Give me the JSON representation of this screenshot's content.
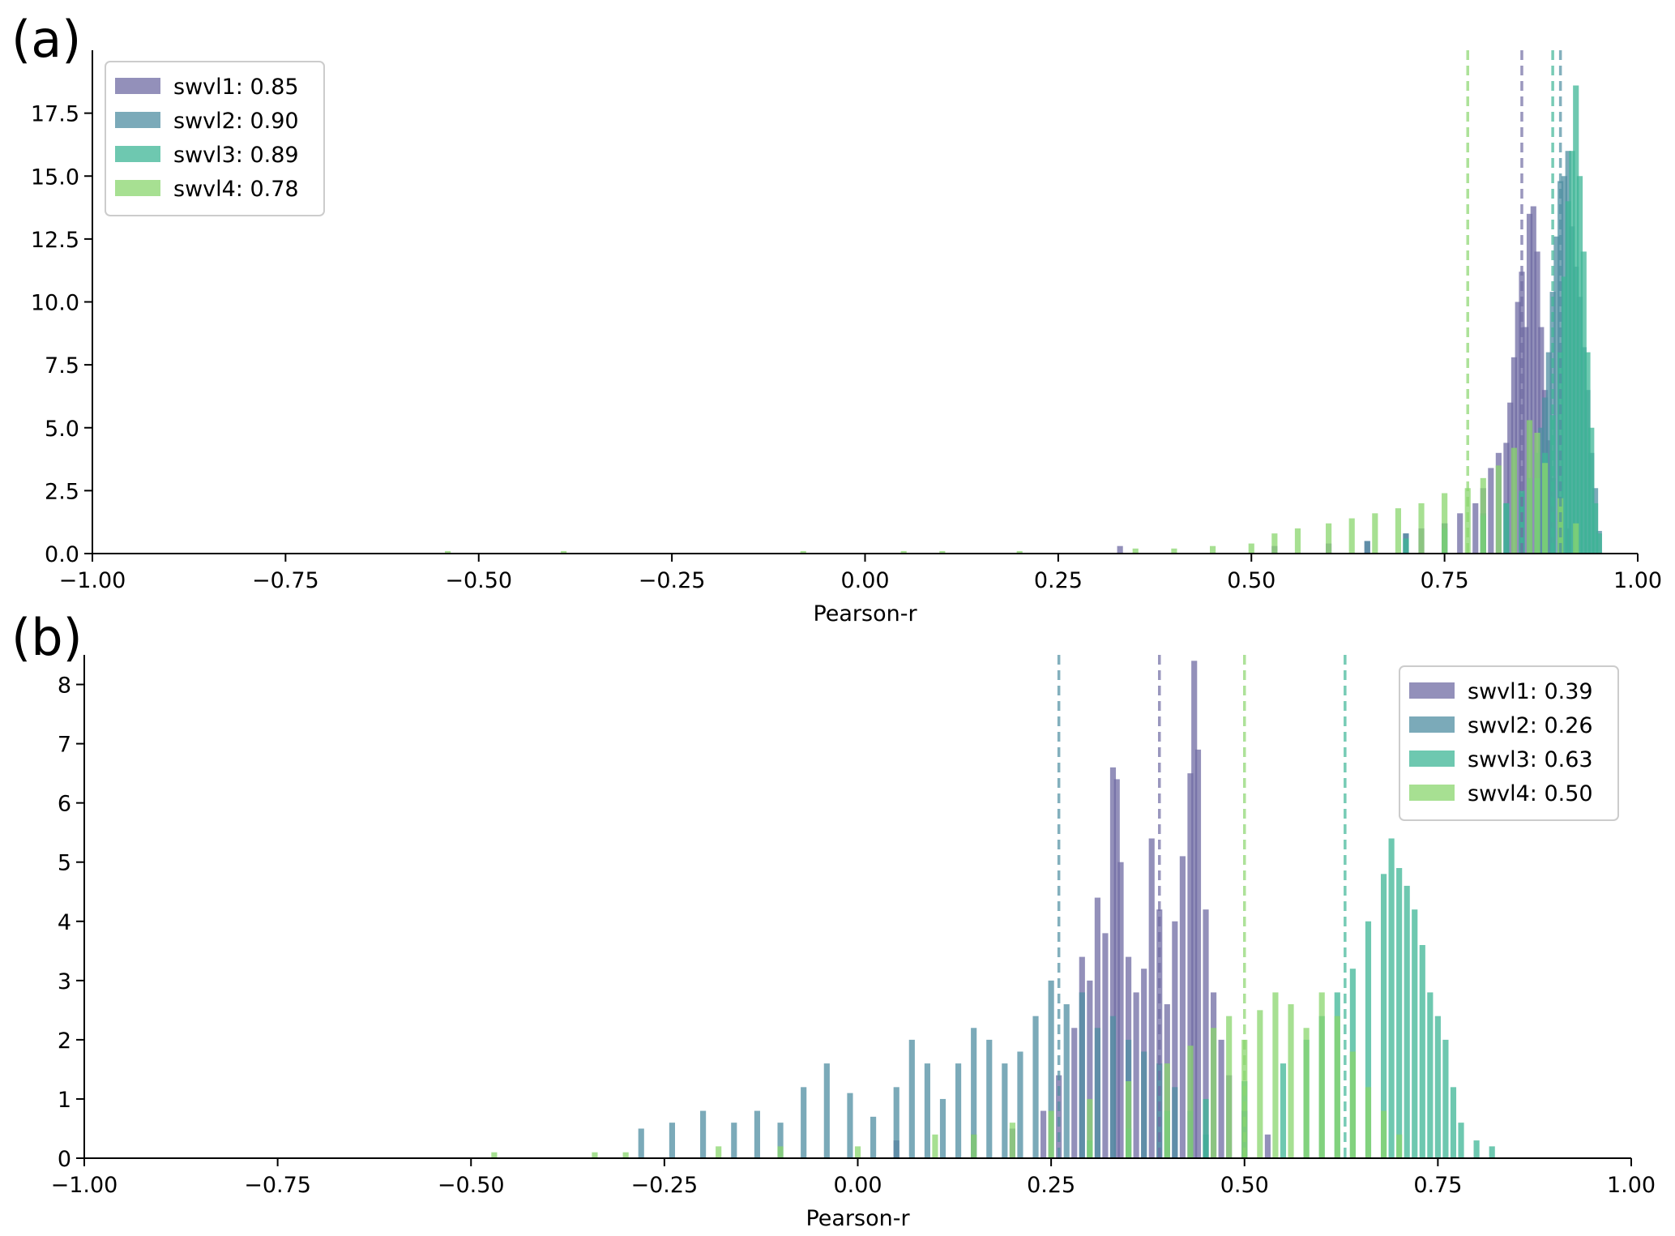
{
  "chart_data": [
    {
      "panel_label": "(a)",
      "type": "histogram",
      "xlabel": "Pearson-r",
      "ylabel": "",
      "xlim": [
        -1.0,
        1.0
      ],
      "ylim": [
        0,
        20
      ],
      "xticks": [
        "−1.00",
        "−0.75",
        "−0.50",
        "−0.25",
        "0.00",
        "0.25",
        "0.50",
        "0.75",
        "1.00"
      ],
      "yticks": [
        "0.0",
        "2.5",
        "5.0",
        "7.5",
        "10.0",
        "12.5",
        "15.0",
        "17.5"
      ],
      "legend_position": "top-left",
      "series": [
        {
          "name": "swvl1: 0.85",
          "color": "#6f6ba3",
          "mean": 0.85,
          "bins": [
            [
              0.33,
              0.3
            ],
            [
              0.53,
              0.3
            ],
            [
              0.6,
              0.4
            ],
            [
              0.65,
              0.5
            ],
            [
              0.7,
              0.8
            ],
            [
              0.72,
              1.0
            ],
            [
              0.75,
              1.2
            ],
            [
              0.77,
              1.6
            ],
            [
              0.79,
              2.0
            ],
            [
              0.8,
              2.6
            ],
            [
              0.81,
              3.4
            ],
            [
              0.82,
              4.0
            ],
            [
              0.83,
              4.4
            ],
            [
              0.835,
              6.0
            ],
            [
              0.84,
              7.8
            ],
            [
              0.845,
              10.0
            ],
            [
              0.85,
              11.2
            ],
            [
              0.855,
              9.0
            ],
            [
              0.86,
              13.5
            ],
            [
              0.865,
              13.8
            ],
            [
              0.87,
              12.0
            ],
            [
              0.875,
              9.0
            ],
            [
              0.88,
              6.5
            ],
            [
              0.885,
              4.5
            ],
            [
              0.89,
              3.0
            ],
            [
              0.9,
              2.0
            ],
            [
              0.91,
              1.0
            ]
          ]
        },
        {
          "name": "swvl2: 0.90",
          "color": "#4f8ea1",
          "mean": 0.9,
          "bins": [
            [
              0.65,
              0.5
            ],
            [
              0.7,
              0.8
            ],
            [
              0.75,
              1.2
            ],
            [
              0.8,
              1.6
            ],
            [
              0.83,
              2.0
            ],
            [
              0.85,
              2.4
            ],
            [
              0.86,
              3.0
            ],
            [
              0.87,
              4.0
            ],
            [
              0.875,
              5.0
            ],
            [
              0.88,
              6.2
            ],
            [
              0.885,
              8.0
            ],
            [
              0.89,
              10.4
            ],
            [
              0.895,
              12.6
            ],
            [
              0.9,
              14.8
            ],
            [
              0.905,
              15.0
            ],
            [
              0.91,
              16.0
            ],
            [
              0.915,
              13.0
            ],
            [
              0.92,
              11.4
            ],
            [
              0.925,
              10.2
            ],
            [
              0.93,
              8.2
            ],
            [
              0.935,
              6.5
            ],
            [
              0.94,
              4.0
            ],
            [
              0.945,
              2.6
            ],
            [
              0.95,
              0.9
            ]
          ]
        },
        {
          "name": "swvl3: 0.89",
          "color": "#3db596",
          "mean": 0.89,
          "bins": [
            [
              0.7,
              0.6
            ],
            [
              0.75,
              1.0
            ],
            [
              0.8,
              1.5
            ],
            [
              0.83,
              2.0
            ],
            [
              0.85,
              2.5
            ],
            [
              0.87,
              3.0
            ],
            [
              0.88,
              4.0
            ],
            [
              0.89,
              5.5
            ],
            [
              0.9,
              8.0
            ],
            [
              0.905,
              11.0
            ],
            [
              0.91,
              14.0
            ],
            [
              0.915,
              16.0
            ],
            [
              0.92,
              18.6
            ],
            [
              0.925,
              15.0
            ],
            [
              0.93,
              12.0
            ],
            [
              0.935,
              8.0
            ],
            [
              0.94,
              5.0
            ],
            [
              0.945,
              2.0
            ],
            [
              0.95,
              0.8
            ]
          ]
        },
        {
          "name": "swvl4: 0.78",
          "color": "#8ad66e",
          "mean": 0.78,
          "bins": [
            [
              -0.54,
              0.1
            ],
            [
              -0.39,
              0.1
            ],
            [
              -0.08,
              0.1
            ],
            [
              0.05,
              0.1
            ],
            [
              0.1,
              0.1
            ],
            [
              0.2,
              0.1
            ],
            [
              0.35,
              0.2
            ],
            [
              0.4,
              0.2
            ],
            [
              0.45,
              0.3
            ],
            [
              0.5,
              0.4
            ],
            [
              0.53,
              0.8
            ],
            [
              0.56,
              1.0
            ],
            [
              0.6,
              1.2
            ],
            [
              0.63,
              1.4
            ],
            [
              0.66,
              1.6
            ],
            [
              0.69,
              1.8
            ],
            [
              0.72,
              2.0
            ],
            [
              0.75,
              2.4
            ],
            [
              0.78,
              2.6
            ],
            [
              0.8,
              3.0
            ],
            [
              0.82,
              3.5
            ],
            [
              0.84,
              4.2
            ],
            [
              0.86,
              5.3
            ],
            [
              0.87,
              4.8
            ],
            [
              0.88,
              3.6
            ],
            [
              0.9,
              2.2
            ],
            [
              0.92,
              1.2
            ]
          ]
        }
      ]
    },
    {
      "panel_label": "(b)",
      "type": "histogram",
      "xlabel": "Pearson-r",
      "ylabel": "",
      "xlim": [
        -1.0,
        1.0
      ],
      "ylim": [
        0,
        8.5
      ],
      "xticks": [
        "−1.00",
        "−0.75",
        "−0.50",
        "−0.25",
        "0.00",
        "0.25",
        "0.50",
        "0.75",
        "1.00"
      ],
      "yticks": [
        "0",
        "1",
        "2",
        "3",
        "4",
        "5",
        "6",
        "7",
        "8"
      ],
      "legend_position": "top-right",
      "series": [
        {
          "name": "swvl1: 0.39",
          "color": "#6f6ba3",
          "mean": 0.39,
          "bins": [
            [
              0.05,
              0.3
            ],
            [
              0.15,
              0.4
            ],
            [
              0.2,
              0.5
            ],
            [
              0.24,
              0.8
            ],
            [
              0.26,
              1.4
            ],
            [
              0.28,
              2.2
            ],
            [
              0.29,
              3.4
            ],
            [
              0.3,
              3.0
            ],
            [
              0.31,
              4.4
            ],
            [
              0.32,
              3.8
            ],
            [
              0.33,
              6.6
            ],
            [
              0.335,
              6.4
            ],
            [
              0.34,
              5.0
            ],
            [
              0.35,
              3.4
            ],
            [
              0.36,
              2.8
            ],
            [
              0.37,
              3.2
            ],
            [
              0.38,
              5.4
            ],
            [
              0.39,
              4.2
            ],
            [
              0.4,
              2.6
            ],
            [
              0.41,
              4.0
            ],
            [
              0.42,
              5.1
            ],
            [
              0.43,
              6.5
            ],
            [
              0.435,
              8.4
            ],
            [
              0.44,
              6.9
            ],
            [
              0.45,
              4.2
            ],
            [
              0.46,
              2.8
            ],
            [
              0.47,
              2.0
            ],
            [
              0.48,
              1.4
            ],
            [
              0.5,
              0.8
            ],
            [
              0.53,
              0.4
            ]
          ]
        },
        {
          "name": "swvl2: 0.26",
          "color": "#4f8ea1",
          "mean": 0.26,
          "bins": [
            [
              -0.28,
              0.5
            ],
            [
              -0.24,
              0.6
            ],
            [
              -0.2,
              0.8
            ],
            [
              -0.16,
              0.6
            ],
            [
              -0.13,
              0.8
            ],
            [
              -0.1,
              0.6
            ],
            [
              -0.07,
              1.2
            ],
            [
              -0.04,
              1.6
            ],
            [
              -0.01,
              1.1
            ],
            [
              0.02,
              0.7
            ],
            [
              0.05,
              1.2
            ],
            [
              0.07,
              2.0
            ],
            [
              0.09,
              1.6
            ],
            [
              0.11,
              1.0
            ],
            [
              0.13,
              1.6
            ],
            [
              0.15,
              2.2
            ],
            [
              0.17,
              2.0
            ],
            [
              0.19,
              1.6
            ],
            [
              0.21,
              1.8
            ],
            [
              0.23,
              2.4
            ],
            [
              0.25,
              3.0
            ],
            [
              0.27,
              2.6
            ],
            [
              0.29,
              2.8
            ],
            [
              0.31,
              2.2
            ],
            [
              0.33,
              2.4
            ],
            [
              0.35,
              2.0
            ],
            [
              0.37,
              1.8
            ],
            [
              0.39,
              1.6
            ],
            [
              0.41,
              1.2
            ],
            [
              0.43,
              0.8
            ],
            [
              0.45,
              0.4
            ]
          ]
        },
        {
          "name": "swvl3: 0.63",
          "color": "#3db596",
          "mean": 0.63,
          "bins": [
            [
              0.3,
              0.3
            ],
            [
              0.35,
              0.5
            ],
            [
              0.4,
              0.8
            ],
            [
              0.45,
              1.0
            ],
            [
              0.5,
              1.3
            ],
            [
              0.55,
              1.6
            ],
            [
              0.58,
              2.0
            ],
            [
              0.6,
              2.4
            ],
            [
              0.62,
              2.8
            ],
            [
              0.64,
              3.2
            ],
            [
              0.66,
              4.0
            ],
            [
              0.68,
              4.8
            ],
            [
              0.69,
              5.4
            ],
            [
              0.7,
              4.9
            ],
            [
              0.71,
              4.6
            ],
            [
              0.72,
              4.2
            ],
            [
              0.73,
              3.6
            ],
            [
              0.74,
              2.8
            ],
            [
              0.75,
              2.4
            ],
            [
              0.76,
              2.0
            ],
            [
              0.77,
              1.2
            ],
            [
              0.78,
              0.6
            ],
            [
              0.8,
              0.3
            ],
            [
              0.82,
              0.2
            ]
          ]
        },
        {
          "name": "swvl4: 0.50",
          "color": "#8ad66e",
          "mean": 0.5,
          "bins": [
            [
              -0.47,
              0.1
            ],
            [
              -0.34,
              0.1
            ],
            [
              -0.3,
              0.1
            ],
            [
              -0.18,
              0.2
            ],
            [
              -0.1,
              0.2
            ],
            [
              0.0,
              0.2
            ],
            [
              0.1,
              0.4
            ],
            [
              0.15,
              0.4
            ],
            [
              0.2,
              0.6
            ],
            [
              0.25,
              0.8
            ],
            [
              0.3,
              1.0
            ],
            [
              0.35,
              1.3
            ],
            [
              0.4,
              1.6
            ],
            [
              0.43,
              1.9
            ],
            [
              0.46,
              2.2
            ],
            [
              0.48,
              2.4
            ],
            [
              0.5,
              2.0
            ],
            [
              0.52,
              2.5
            ],
            [
              0.54,
              2.8
            ],
            [
              0.56,
              2.6
            ],
            [
              0.58,
              2.2
            ],
            [
              0.6,
              2.8
            ],
            [
              0.62,
              2.4
            ],
            [
              0.64,
              1.8
            ],
            [
              0.66,
              1.2
            ],
            [
              0.68,
              0.8
            ],
            [
              0.7,
              0.4
            ]
          ]
        }
      ]
    }
  ]
}
